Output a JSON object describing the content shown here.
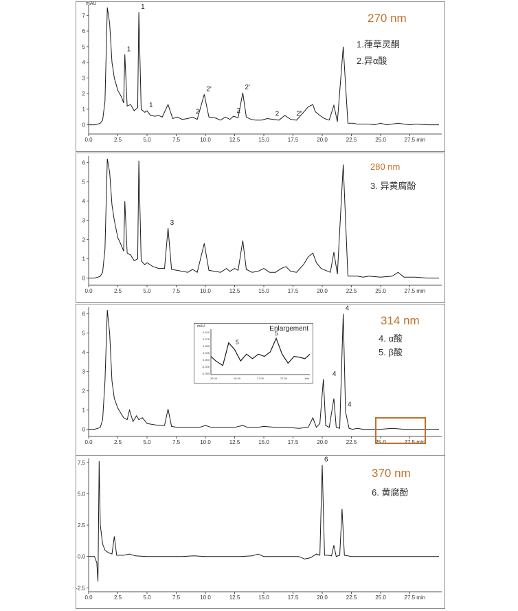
{
  "panels": [
    {
      "wavelength": "270 nm",
      "legend": [
        "1.葎草灵酮",
        "2.异α酸"
      ],
      "unit": "mAU",
      "yticks": [
        0,
        1,
        2,
        3,
        4,
        5,
        6,
        7
      ],
      "xticks": [
        "0.0",
        "2.5",
        "5.0",
        "7.5",
        "10.0",
        "12.5",
        "15.0",
        "17.5",
        "20.0",
        "22.5",
        "25.0",
        "27.5 min"
      ],
      "peak_labels": [
        "1",
        "1",
        "1",
        "2",
        "2'",
        "2",
        "2'",
        "2",
        "2''"
      ]
    },
    {
      "wavelength": "280 nm",
      "legend": [
        "3. 异黄腐酚"
      ],
      "unit": "",
      "yticks": [
        0,
        1,
        2,
        3,
        4,
        5,
        6
      ],
      "xticks": [
        "0.0",
        "2.5",
        "5.0",
        "7.5",
        "10.0",
        "12.5",
        "15.0",
        "17.5",
        "20.0",
        "22.5",
        "25.0",
        "27.5 min"
      ],
      "peak_labels": [
        "3"
      ]
    },
    {
      "wavelength": "314 nm",
      "legend": [
        "4. α酸",
        "5. β酸"
      ],
      "unit": "",
      "yticks": [
        0,
        1,
        2,
        3,
        4,
        5,
        6
      ],
      "xticks": [
        "0.0",
        "2.5",
        "5.0",
        "7.5",
        "10.0",
        "12.5",
        "15.0",
        "17.5",
        "20.0",
        "22.5",
        "25.0",
        "27.5 min"
      ],
      "peak_labels": [
        "4",
        "4",
        "4"
      ],
      "inset": {
        "title": "Enlargement",
        "unit": "mAU",
        "yticks": [
          "0.100",
          "0.075",
          "0.050",
          "0.025",
          "0.000",
          "-0.025",
          "-0.050"
        ],
        "xticks": [
          "26.00",
          "26.50",
          "27.00",
          "27.50",
          "min"
        ],
        "peak_labels": [
          "5",
          "5"
        ]
      }
    },
    {
      "wavelength": "370 nm",
      "legend": [
        "6. 黄腐酚"
      ],
      "unit": "",
      "yticks": [
        "-2.5",
        "0.0",
        "2.5",
        "5.0",
        "7.5"
      ],
      "xticks": [
        "0.0",
        "2.5",
        "5.0",
        "7.5",
        "10.0",
        "12.5",
        "15.0",
        "17.5",
        "20.0",
        "22.5",
        "25.0",
        "27.5 min"
      ],
      "peak_labels": [
        "6"
      ]
    }
  ],
  "chart_data": [
    {
      "type": "line",
      "title": "270 nm",
      "xlim": [
        0,
        30
      ],
      "ylim": [
        -0.5,
        7.5
      ],
      "series": [
        {
          "x": [
            0,
            0.5,
            0.8,
            1.0,
            1.2,
            1.4,
            1.6,
            1.8,
            2.0,
            2.2,
            2.5,
            2.8,
            3.0,
            3.1,
            3.3,
            3.6,
            3.9,
            4.2,
            4.3,
            4.5,
            4.8,
            5.0,
            5.3,
            5.7,
            6.0,
            6.3,
            6.8,
            7.2,
            7.6,
            8.0,
            8.5,
            8.9,
            9.3,
            9.9,
            10.3,
            10.8,
            11.3,
            11.7,
            12.1,
            12.4,
            12.8,
            13.2,
            13.5,
            13.9,
            14.3,
            14.8,
            15.3,
            15.8,
            16.3,
            16.8,
            17.3,
            17.8,
            18.4,
            18.8,
            19.2,
            19.4,
            19.8,
            20.2,
            20.6,
            21.0,
            21.3,
            21.8,
            22.2,
            22.6,
            23.0,
            23.5,
            24.0,
            24.5,
            25.0,
            25.5,
            26.0,
            26.5,
            27.0,
            27.5,
            28.0,
            29.0,
            30.0
          ],
          "y": [
            0,
            0,
            0.05,
            0.1,
            0.3,
            1.5,
            7.5,
            6.5,
            4.0,
            3.0,
            2.2,
            1.8,
            1.4,
            4.5,
            1.2,
            1.3,
            0.9,
            1.1,
            7.2,
            1.0,
            0.8,
            0.9,
            0.6,
            0.55,
            0.6,
            0.5,
            1.3,
            0.4,
            0.5,
            0.35,
            0.4,
            0.5,
            0.35,
            1.95,
            0.5,
            0.45,
            0.3,
            0.5,
            0.35,
            0.55,
            0.45,
            2.05,
            0.5,
            0.35,
            0.3,
            0.3,
            0.4,
            0.35,
            0.3,
            0.6,
            0.35,
            0.3,
            0.8,
            1.15,
            1.3,
            0.85,
            0.6,
            0.4,
            0.3,
            1.25,
            0.2,
            5.0,
            0.1,
            0.1,
            0.05,
            0.05,
            0.05,
            0.0,
            0.1,
            0.0,
            0.05,
            0.1,
            0.05,
            0.0,
            0.05,
            0.0,
            0.0
          ]
        }
      ],
      "annotations": [
        {
          "text": "1",
          "x": 4.3,
          "y": 7.2
        },
        {
          "text": "1",
          "x": 3.1,
          "y": 4.5
        },
        {
          "text": "1",
          "x": 5.0,
          "y": 0.9
        },
        {
          "text": "2",
          "x": 9.0,
          "y": 0.5
        },
        {
          "text": "2'",
          "x": 9.9,
          "y": 1.95
        },
        {
          "text": "2",
          "x": 12.5,
          "y": 0.55
        },
        {
          "text": "2'",
          "x": 13.2,
          "y": 2.05
        },
        {
          "text": "2",
          "x": 15.8,
          "y": 0.35
        },
        {
          "text": "2''",
          "x": 17.6,
          "y": 0.35
        }
      ]
    },
    {
      "type": "line",
      "title": "280 nm",
      "xlim": [
        0,
        30
      ],
      "ylim": [
        -0.3,
        6.2
      ],
      "series": [
        {
          "x": [
            0,
            0.5,
            0.8,
            1.0,
            1.2,
            1.4,
            1.6,
            1.8,
            2.0,
            2.2,
            2.5,
            2.8,
            3.0,
            3.1,
            3.3,
            3.6,
            3.9,
            4.2,
            4.3,
            4.5,
            4.8,
            5.0,
            5.5,
            6.0,
            6.5,
            6.8,
            7.1,
            7.6,
            8.0,
            8.5,
            8.9,
            9.3,
            9.9,
            10.3,
            10.8,
            11.3,
            11.8,
            12.1,
            12.5,
            12.8,
            13.2,
            13.5,
            14.0,
            14.5,
            15.0,
            15.5,
            16.0,
            16.5,
            16.9,
            17.3,
            17.8,
            18.4,
            18.8,
            19.2,
            19.5,
            19.9,
            20.3,
            20.7,
            21.0,
            21.3,
            21.8,
            22.2,
            22.6,
            23.0,
            23.5,
            24.0,
            25.0,
            26.0,
            26.5,
            27.0,
            28.0,
            29.0,
            30.0
          ],
          "y": [
            0,
            0,
            0.05,
            0.1,
            0.3,
            1.5,
            6.2,
            5.5,
            3.8,
            3.0,
            2.1,
            1.7,
            1.4,
            4.0,
            1.3,
            1.2,
            0.9,
            1.0,
            6.1,
            0.9,
            0.7,
            0.8,
            0.6,
            0.5,
            0.5,
            2.6,
            0.45,
            0.4,
            0.35,
            0.3,
            0.45,
            0.3,
            1.8,
            0.4,
            0.35,
            0.3,
            0.5,
            0.35,
            0.5,
            0.4,
            1.95,
            0.45,
            0.3,
            0.35,
            0.5,
            0.3,
            0.3,
            0.5,
            0.6,
            0.35,
            0.3,
            0.7,
            1.1,
            1.3,
            0.8,
            0.5,
            0.4,
            0.3,
            1.35,
            0.2,
            5.9,
            0.1,
            0.1,
            0.1,
            0.05,
            0.1,
            0.05,
            0.1,
            0.3,
            0.05,
            0.05,
            0.0,
            0.0
          ]
        }
      ],
      "annotations": [
        {
          "text": "3",
          "x": 6.8,
          "y": 2.6
        }
      ]
    },
    {
      "type": "line",
      "title": "314 nm",
      "xlim": [
        0,
        30
      ],
      "ylim": [
        -0.3,
        6.2
      ],
      "series": [
        {
          "x": [
            0,
            0.5,
            0.8,
            1.0,
            1.2,
            1.4,
            1.6,
            1.8,
            2.0,
            2.2,
            2.5,
            2.8,
            3.0,
            3.3,
            3.5,
            3.8,
            4.1,
            4.3,
            4.6,
            5.0,
            5.5,
            6.0,
            6.5,
            6.8,
            7.1,
            7.6,
            8.5,
            9.5,
            10.0,
            10.5,
            11.5,
            12.5,
            13.2,
            13.6,
            14.5,
            15.0,
            16.0,
            17.0,
            18.0,
            18.8,
            19.2,
            19.5,
            19.8,
            20.1,
            20.3,
            20.6,
            21.0,
            21.2,
            21.5,
            21.8,
            22.0,
            22.3,
            22.6,
            23.0,
            23.5,
            24.0,
            25.0,
            26.0,
            27.0,
            28.0,
            29.0,
            30.0
          ],
          "y": [
            0,
            0,
            0.05,
            0.1,
            0.5,
            2.5,
            6.2,
            5.0,
            2.5,
            1.6,
            1.1,
            0.8,
            0.6,
            0.5,
            1.0,
            0.4,
            0.7,
            0.5,
            0.6,
            0.3,
            0.25,
            0.2,
            0.2,
            1.05,
            0.15,
            0.1,
            0.1,
            0.1,
            0.2,
            0.1,
            0.1,
            0.1,
            0.2,
            0.1,
            0.1,
            0.15,
            0.1,
            0.1,
            0.05,
            0.1,
            0.6,
            0.1,
            0.3,
            2.6,
            0.2,
            0.1,
            1.6,
            0.1,
            0.05,
            6.0,
            0.9,
            0.05,
            0.0,
            0.05,
            0.0,
            0.0,
            0.0,
            0.05,
            0.0,
            0.0,
            0.0,
            0.0
          ]
        }
      ],
      "annotations": [
        {
          "text": "4",
          "x": 21.8,
          "y": 6.0
        },
        {
          "text": "4",
          "x": 20.7,
          "y": 2.6
        },
        {
          "text": "4",
          "x": 22.0,
          "y": 1.0
        }
      ]
    },
    {
      "type": "line",
      "title": "370 nm",
      "xlim": [
        0,
        30
      ],
      "ylim": [
        -2.7,
        7.6
      ],
      "series": [
        {
          "x": [
            0,
            0.3,
            0.5,
            0.7,
            0.8,
            0.9,
            1.0,
            1.2,
            1.4,
            1.7,
            2.0,
            2.2,
            2.4,
            3.0,
            3.5,
            4.0,
            5.0,
            6.0,
            7.0,
            8.0,
            9.0,
            10.0,
            11.0,
            12.0,
            13.0,
            14.0,
            14.5,
            15.0,
            16.0,
            17.0,
            18.0,
            18.5,
            19.0,
            19.5,
            19.8,
            20.0,
            20.2,
            20.5,
            20.8,
            21.0,
            21.2,
            21.5,
            21.7,
            21.9,
            22.2,
            22.5,
            23.0,
            24.0,
            25.0,
            26.0,
            27.0,
            28.0,
            29.0,
            30.0
          ],
          "y": [
            0,
            0,
            0,
            -0.5,
            -2.0,
            7.6,
            2.5,
            1.0,
            0.5,
            0.3,
            0.2,
            1.6,
            0.1,
            0.1,
            0.2,
            0.05,
            0.0,
            0.0,
            0.0,
            0.0,
            0.05,
            0.0,
            0.0,
            0.0,
            0.0,
            0.05,
            0.2,
            0.0,
            0.0,
            0.0,
            0.0,
            -0.2,
            -0.1,
            0.2,
            0.1,
            7.3,
            0.1,
            0.1,
            0.05,
            0.9,
            0.0,
            0.1,
            3.8,
            0.1,
            0.05,
            0.0,
            0.0,
            0.0,
            0.0,
            0.0,
            0.0,
            0.0,
            0.0,
            0.0
          ]
        }
      ],
      "annotations": [
        {
          "text": "6",
          "x": 20.0,
          "y": 7.3
        }
      ]
    }
  ],
  "colors": {
    "trace": "#1a1a1a",
    "wavelength": "#c0702a",
    "highlight_box": "#c0702a",
    "axis": "#555555"
  }
}
